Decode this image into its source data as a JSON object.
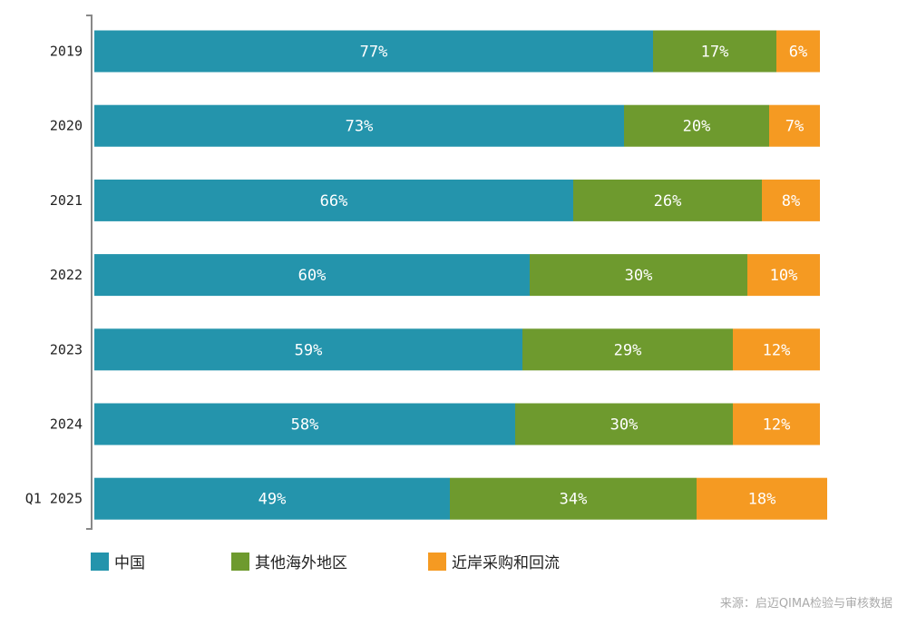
{
  "chart_data": {
    "type": "bar",
    "orientation": "horizontal",
    "stacked": true,
    "categories": [
      "2019",
      "2020",
      "2021",
      "2022",
      "2023",
      "2024",
      "Q1 2025"
    ],
    "series": [
      {
        "name": "中国",
        "color": "#2494ac",
        "values": [
          77,
          73,
          66,
          60,
          59,
          58,
          49
        ]
      },
      {
        "name": "其他海外地区",
        "color": "#6e9a2e",
        "values": [
          17,
          20,
          26,
          30,
          29,
          30,
          34
        ]
      },
      {
        "name": "近岸采购和回流",
        "color": "#f59a22",
        "values": [
          6,
          7,
          8,
          10,
          12,
          12,
          18
        ]
      }
    ],
    "value_suffix": "%",
    "xlim": [
      0,
      100
    ],
    "grid": false,
    "legend_position": "bottom-left"
  },
  "source_text": "来源：启迈QIMA检验与审核数据"
}
